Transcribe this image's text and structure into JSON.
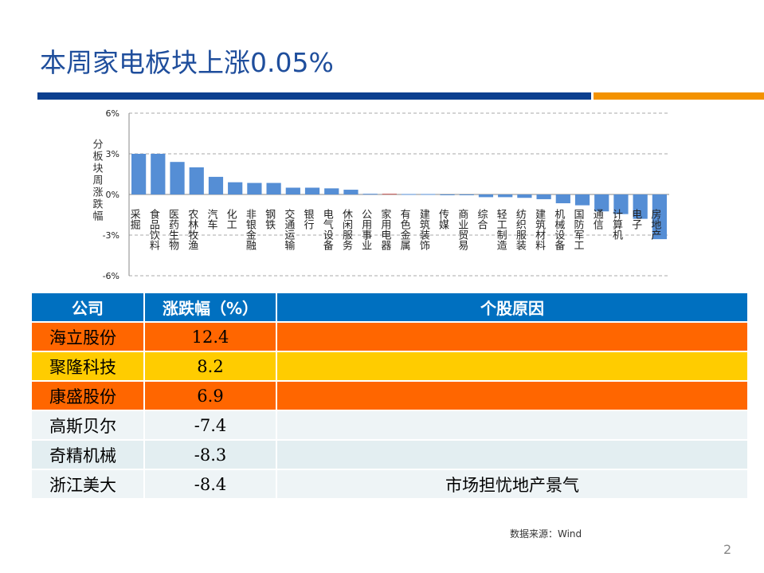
{
  "title": "本周家电板块上涨0.05%",
  "chart_data": {
    "type": "bar",
    "ylabel": "分板块周涨跌幅",
    "ylim": [
      -6,
      6
    ],
    "yticks": [
      "6%",
      "3%",
      "0%",
      "-3%",
      "-6%"
    ],
    "grid": true,
    "color": "#558ED5",
    "highlight_color": "#C0504D",
    "categories": [
      "采掘",
      "食品饮料",
      "医药生物",
      "农林牧渔",
      "汽车",
      "化工",
      "非银金融",
      "钢铁",
      "交通运输",
      "银行",
      "电气设备",
      "休闲服务",
      "公用事业",
      "家用电器",
      "有色金属",
      "建筑装饰",
      "传媒",
      "商业贸易",
      "综合",
      "轻工制造",
      "纺织服装",
      "建筑材料",
      "机械设备",
      "国防军工",
      "通信",
      "计算机",
      "电子",
      "房地产"
    ],
    "values": [
      3.0,
      3.0,
      2.4,
      2.0,
      1.3,
      0.9,
      0.85,
      0.85,
      0.5,
      0.5,
      0.45,
      0.35,
      0.05,
      0.05,
      0.03,
      0.03,
      -0.02,
      -0.02,
      -0.2,
      -0.2,
      -0.25,
      -0.35,
      -0.65,
      -0.8,
      -1.25,
      -1.45,
      -1.8,
      -3.3
    ]
  },
  "table": {
    "headers": [
      "公司",
      "涨跌幅（%）",
      "个股原因"
    ],
    "rows": [
      {
        "company": "海立股份",
        "change": "12.4",
        "reason": "",
        "bg": "#FF6600"
      },
      {
        "company": "聚隆科技",
        "change": "8.2",
        "reason": "",
        "bg": "#FFCC00"
      },
      {
        "company": "康盛股份",
        "change": "6.9",
        "reason": "",
        "bg": "#FF6600"
      },
      {
        "company": "高斯贝尔",
        "change": "-7.4",
        "reason": "",
        "bg": "#EEF4F6"
      },
      {
        "company": "奇精机械",
        "change": "-8.3",
        "reason": "",
        "bg": "#E3EEF1"
      },
      {
        "company": "浙江美大",
        "change": "-8.4",
        "reason": "市场担忧地产景气",
        "bg": "#EEF4F6"
      }
    ]
  },
  "source": "数据来源：Wind",
  "page_number": "2"
}
